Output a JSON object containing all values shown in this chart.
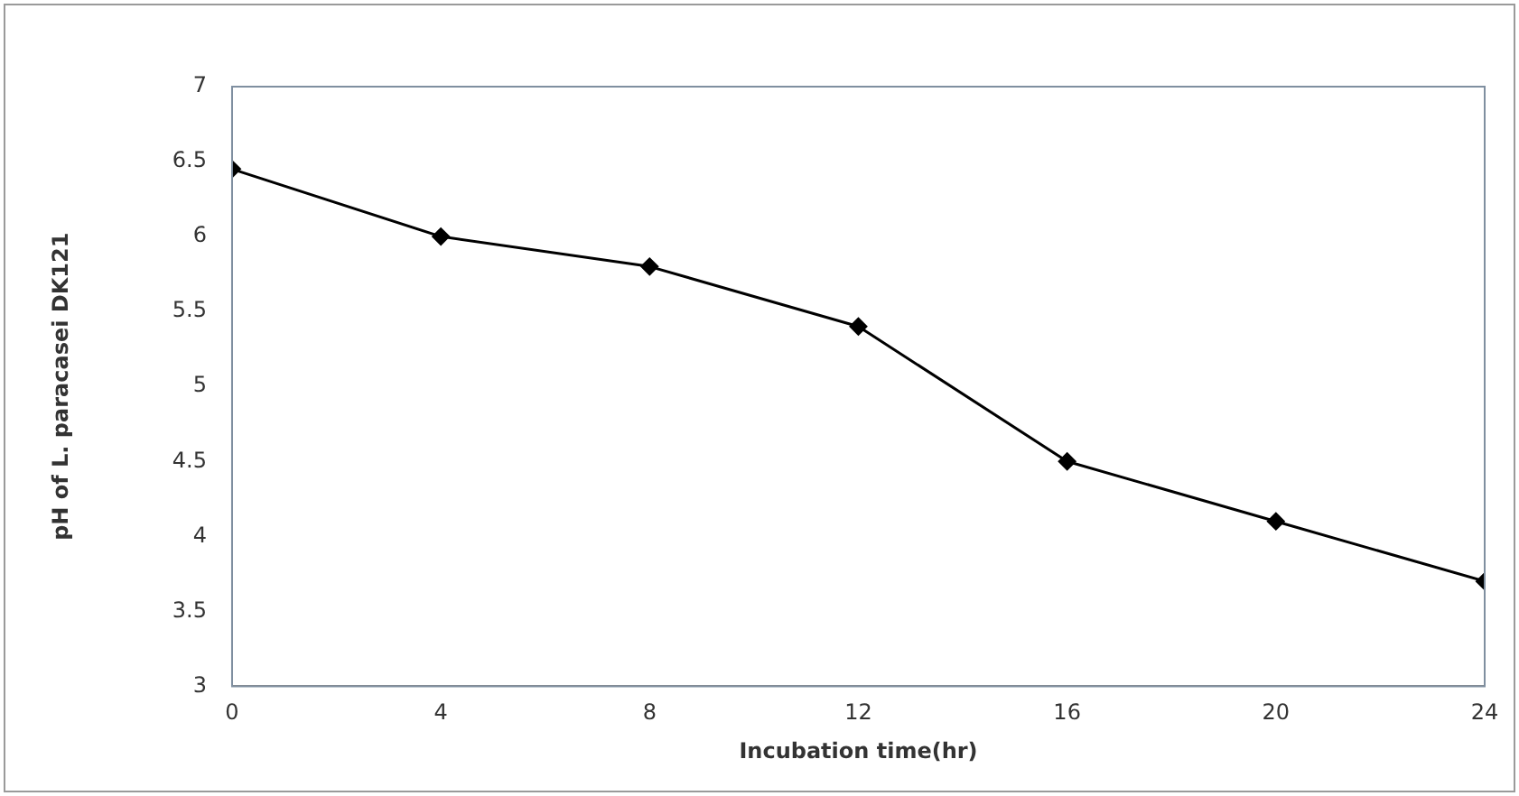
{
  "chart_data": {
    "type": "line",
    "xlabel": "Incubation time(hr)",
    "ylabel": "pH of L. paracasei DK121",
    "x": [
      0,
      4,
      8,
      12,
      16,
      20,
      24
    ],
    "series": [
      {
        "color": "#000000",
        "values": [
          6.45,
          6.0,
          5.8,
          5.4,
          4.5,
          4.1,
          3.7
        ]
      }
    ],
    "xlim": [
      0,
      24
    ],
    "xticks": [
      0,
      4,
      8,
      12,
      16,
      20,
      24
    ],
    "ylim": [
      3,
      7
    ],
    "yticks": [
      3,
      3.5,
      4,
      4.5,
      5,
      5.5,
      6,
      6.5,
      7
    ],
    "grid": false,
    "legend": false,
    "marker": "diamond",
    "line_style": "solid"
  }
}
